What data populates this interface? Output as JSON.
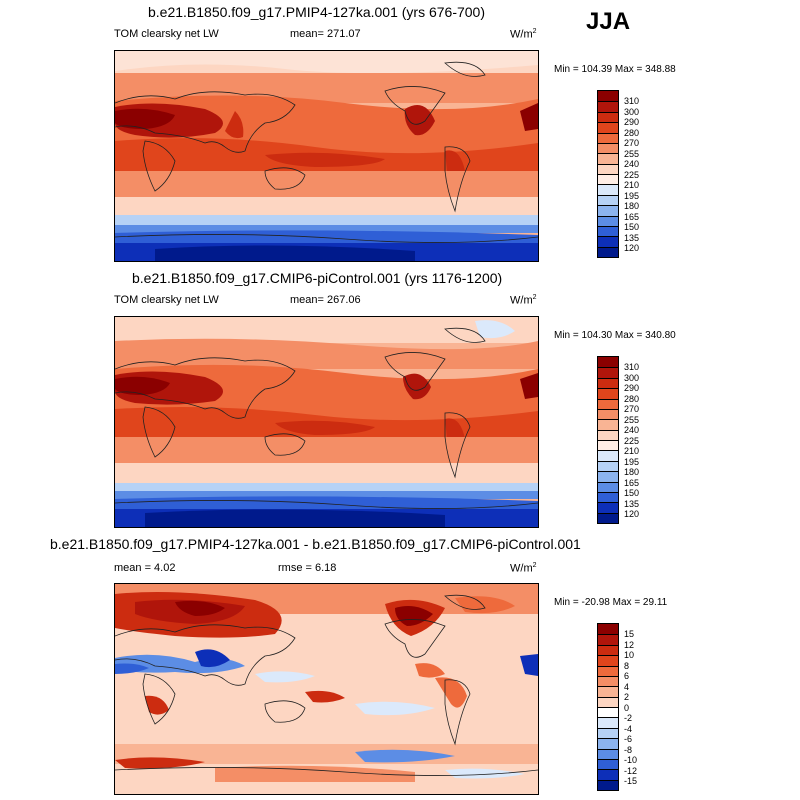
{
  "season": "JJA",
  "panels": [
    {
      "title": "b.e21.B1850.f09_g17.PMIP4-127ka.001 (yrs 676-700)",
      "left_label": "TOM clearsky net LW",
      "mean_label": "mean= 271.07",
      "units": "W/m",
      "units_sup": "2",
      "minmax": "Min = 104.39 Max = 348.88",
      "colorbar": {
        "labels": [
          "310",
          "300",
          "290",
          "280",
          "270",
          "255",
          "240",
          "225",
          "210",
          "195",
          "180",
          "165",
          "150",
          "135",
          "120"
        ],
        "colors": [
          "#8b0000",
          "#b0150b",
          "#cc2c10",
          "#e0451c",
          "#ee6a3c",
          "#f48e66",
          "#f9b494",
          "#fdd6c2",
          "#ffeee6",
          "#dbe9fb",
          "#b6d2f6",
          "#8cb4ef",
          "#5c8de5",
          "#2f5fd6",
          "#0d2fb8",
          "#001a8c"
        ]
      }
    },
    {
      "title": "b.e21.B1850.f09_g17.CMIP6-piControl.001 (yrs 1176-1200)",
      "left_label": "TOM clearsky net LW",
      "mean_label": "mean= 267.06",
      "units": "W/m",
      "units_sup": "2",
      "minmax": "Min = 104.30 Max = 340.80",
      "colorbar": {
        "labels": [
          "310",
          "300",
          "290",
          "280",
          "270",
          "255",
          "240",
          "225",
          "210",
          "195",
          "180",
          "165",
          "150",
          "135",
          "120"
        ],
        "colors": [
          "#8b0000",
          "#b0150b",
          "#cc2c10",
          "#e0451c",
          "#ee6a3c",
          "#f48e66",
          "#f9b494",
          "#fdd6c2",
          "#ffeee6",
          "#dbe9fb",
          "#b6d2f6",
          "#8cb4ef",
          "#5c8de5",
          "#2f5fd6",
          "#0d2fb8",
          "#001a8c"
        ]
      }
    },
    {
      "title": "b.e21.B1850.f09_g17.PMIP4-127ka.001 - b.e21.B1850.f09_g17.CMIP6-piControl.001",
      "left_label": "mean =   4.02",
      "mean_label": "rmse =   6.18",
      "units": "W/m",
      "units_sup": "2",
      "minmax": "Min = -20.98 Max =  29.11",
      "colorbar": {
        "labels": [
          "15",
          "12",
          "10",
          "8",
          "6",
          "4",
          "2",
          "0",
          "-2",
          "-4",
          "-6",
          "-8",
          "-10",
          "-12",
          "-15"
        ],
        "colors": [
          "#8b0000",
          "#b0150b",
          "#cc2c10",
          "#e0451c",
          "#ee6a3c",
          "#f48e66",
          "#f9b494",
          "#fdd6c2",
          "#ffffff",
          "#dbe9fb",
          "#b6d2f6",
          "#8cb4ef",
          "#5c8de5",
          "#2f5fd6",
          "#0d2fb8",
          "#001a8c"
        ]
      }
    }
  ]
}
